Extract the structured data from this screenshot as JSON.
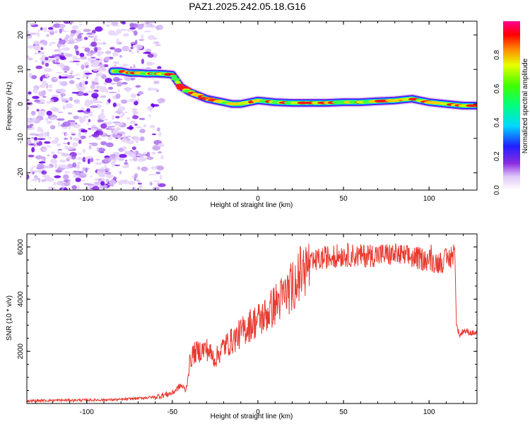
{
  "chart_data": [
    {
      "type": "heatmap",
      "title": "PAZ1.2025.242.05.18.G16",
      "xlabel": "Height of straight line (km)",
      "ylabel": "Frequency (Hz)",
      "xlim": [
        -135,
        128
      ],
      "ylim": [
        -25,
        24
      ],
      "xticks": [
        -100,
        -50,
        0,
        50,
        100
      ],
      "xtick_labels": [
        "-100",
        "-50",
        "0",
        "50",
        "100"
      ],
      "yticks": [
        -20,
        -10,
        0,
        10,
        20
      ],
      "ytick_labels": [
        "-20",
        "-10",
        "0",
        "10",
        "20"
      ],
      "noise_region_x": [
        -135,
        -60
      ],
      "ridge": {
        "x": [
          -85,
          -80,
          -75,
          -70,
          -65,
          -60,
          -55,
          -50,
          -45,
          -40,
          -35,
          -30,
          -25,
          -20,
          -15,
          -10,
          -5,
          0,
          10,
          20,
          30,
          40,
          50,
          60,
          70,
          80,
          90,
          100,
          110,
          120,
          128
        ],
        "y": [
          9.5,
          9.5,
          9,
          9,
          8.8,
          8.8,
          8.7,
          8.5,
          5,
          3.5,
          2.5,
          1.5,
          1,
          0.5,
          0,
          0,
          0.5,
          1,
          0.5,
          0.3,
          0.3,
          0.3,
          0.5,
          0.5,
          0.8,
          1,
          1.5,
          0.5,
          0,
          -0.5,
          -0.5
        ]
      },
      "colorbar": {
        "label": "Normalized spectral amplitude",
        "range": [
          0,
          1
        ],
        "ticks": [
          0,
          0.2,
          0.4,
          0.6,
          0.8
        ],
        "tick_labels": [
          "0.0",
          "0.2",
          "0.4",
          "0.6",
          "0.8"
        ]
      }
    },
    {
      "type": "line",
      "xlabel": "Height of straight line (km)",
      "ylabel": "SNR (10 * v/v)",
      "xlim": [
        -135,
        128
      ],
      "ylim": [
        0,
        6500
      ],
      "xticks": [
        -100,
        -50,
        0,
        50,
        100
      ],
      "xtick_labels": [
        "-100",
        "-50",
        "0",
        "50",
        "100"
      ],
      "yticks": [
        2000,
        4000,
        6000
      ],
      "ytick_labels": [
        "2000",
        "4000",
        "6000"
      ],
      "color": "#e8392f",
      "series": [
        {
          "name": "SNR",
          "x": [
            -135,
            -120,
            -100,
            -80,
            -60,
            -50,
            -45,
            -42,
            -40,
            -38,
            -35,
            -30,
            -25,
            -20,
            -15,
            -10,
            -5,
            0,
            5,
            10,
            15,
            20,
            25,
            30,
            35,
            40,
            50,
            60,
            70,
            80,
            90,
            100,
            105,
            110,
            114,
            115,
            116,
            118,
            120,
            125,
            128
          ],
          "y": [
            100,
            120,
            130,
            150,
            250,
            400,
            700,
            500,
            1500,
            1900,
            2000,
            2100,
            1700,
            2200,
            2400,
            2700,
            3000,
            3200,
            3400,
            3800,
            4100,
            4500,
            5000,
            5300,
            5500,
            5600,
            5700,
            5650,
            5700,
            5700,
            5600,
            5500,
            5400,
            5500,
            5600,
            5900,
            3000,
            2600,
            2800,
            2700,
            2700
          ]
        }
      ]
    }
  ]
}
